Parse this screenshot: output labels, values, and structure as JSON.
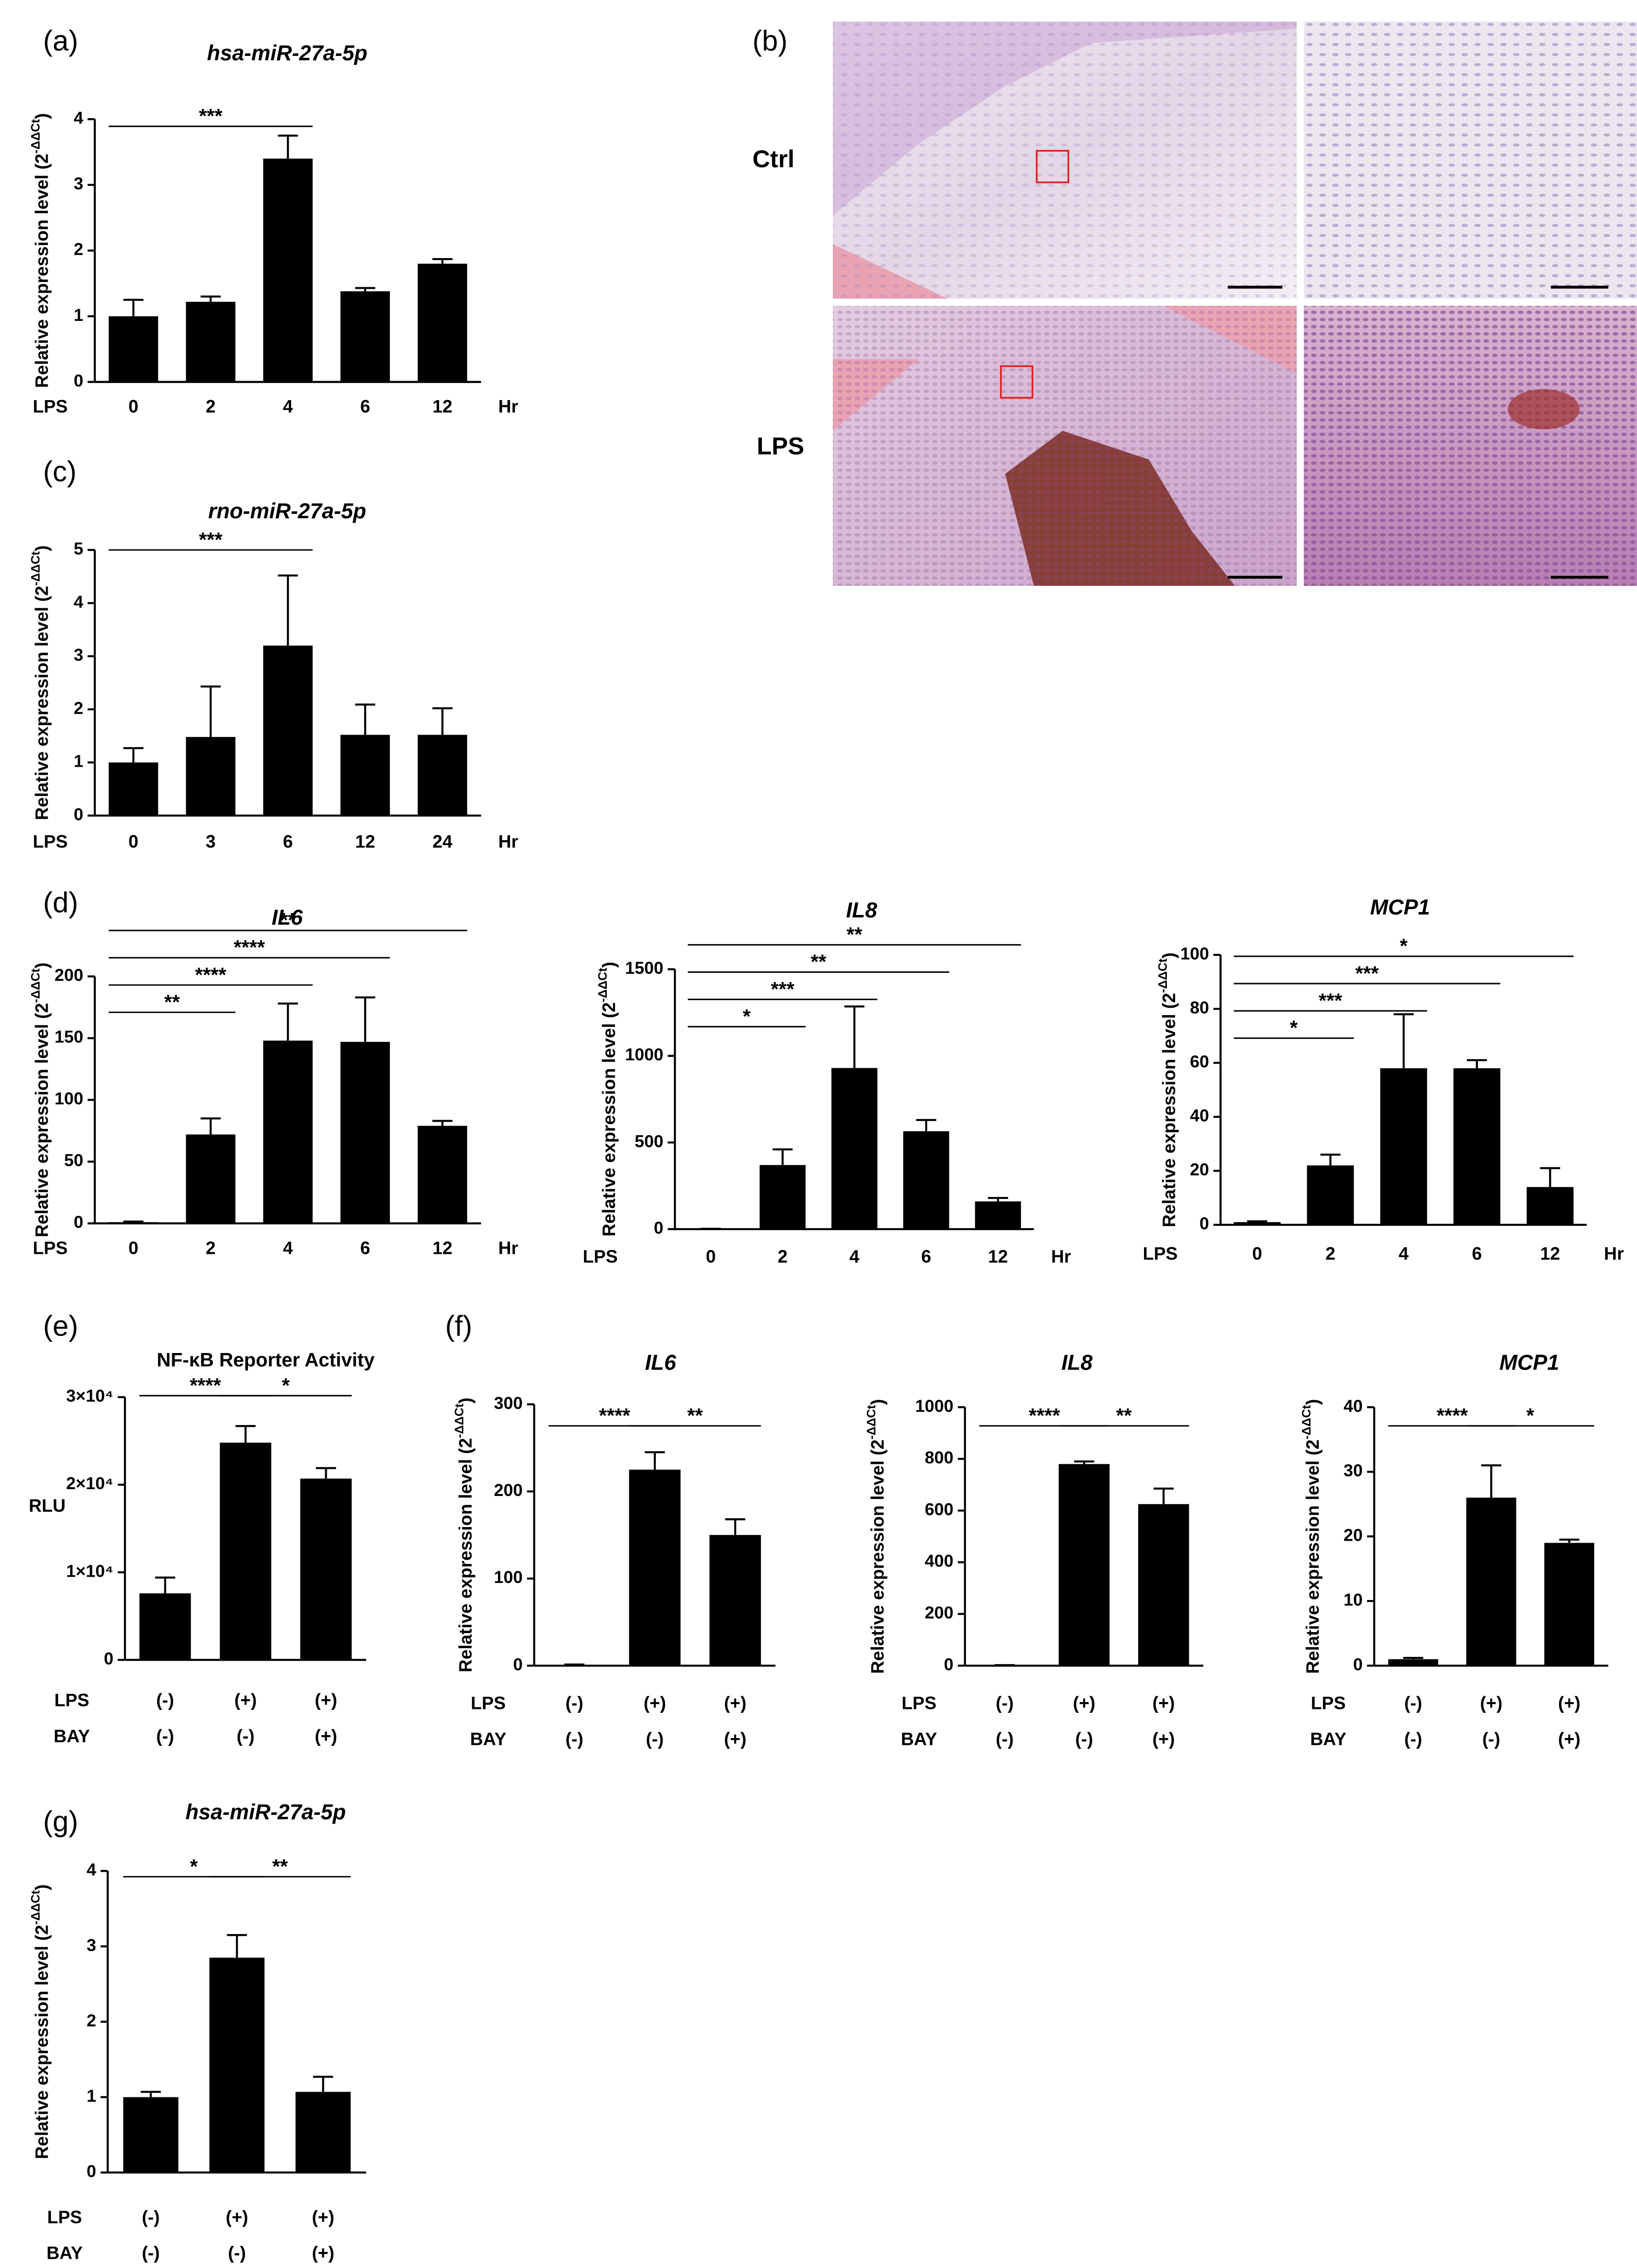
{
  "panel_b": {
    "panel": "(b)",
    "rows": [
      "Ctrl",
      "LPS"
    ]
  },
  "chart_data": [
    {
      "type": "bar",
      "panel": "(a)",
      "title": "hsa-miR-27a-5p",
      "ylabel": [
        "Relative expression level (2",
        "-ΔΔCt",
        ")"
      ],
      "row_label": "LPS",
      "categories": [
        "0",
        "2",
        "4",
        "6",
        "12"
      ],
      "unit_label": "Hr",
      "values": [
        1.0,
        1.22,
        3.4,
        1.38,
        1.8
      ],
      "errors": [
        0.25,
        0.08,
        0.35,
        0.05,
        0.07
      ],
      "ylim": [
        0,
        4
      ],
      "yticks": [
        0,
        1,
        2,
        3,
        4
      ],
      "color": "#000000",
      "significance": [
        {
          "bars": [
            0,
            2
          ],
          "label": "***"
        }
      ]
    },
    {
      "type": "bar",
      "panel": "(c)",
      "title": "rno-miR-27a-5p",
      "ylabel": [
        "Relative expression level (2",
        "-ΔΔCt",
        ")"
      ],
      "row_label": "LPS",
      "categories": [
        "0",
        "3",
        "6",
        "12",
        "24"
      ],
      "unit_label": "Hr",
      "values": [
        1.0,
        1.48,
        3.2,
        1.52,
        1.52
      ],
      "errors": [
        0.27,
        0.95,
        1.32,
        0.57,
        0.5
      ],
      "ylim": [
        0,
        5
      ],
      "yticks": [
        0,
        1,
        2,
        3,
        4,
        5
      ],
      "color": "#000000",
      "significance": [
        {
          "bars": [
            0,
            2
          ],
          "label": "***"
        }
      ]
    },
    {
      "type": "bar",
      "panel": "(d)",
      "title": "IL6",
      "ylabel": [
        "Relative expression level (2",
        "-ΔΔCt",
        ")"
      ],
      "row_label": "LPS",
      "categories": [
        "0",
        "2",
        "4",
        "6",
        "12"
      ],
      "unit_label": "Hr",
      "values": [
        1,
        72,
        148,
        147,
        79
      ],
      "errors": [
        0.5,
        13,
        30,
        36,
        4
      ],
      "ylim": [
        0,
        200
      ],
      "yticks": [
        0,
        50,
        100,
        150,
        200
      ],
      "color": "#000000",
      "significance": [
        {
          "bars": [
            0,
            1
          ],
          "label": "**"
        },
        {
          "bars": [
            0,
            2
          ],
          "label": "****"
        },
        {
          "bars": [
            0,
            3
          ],
          "label": "****"
        },
        {
          "bars": [
            0,
            4
          ],
          "label": "**"
        }
      ]
    },
    {
      "type": "bar",
      "title": "IL8",
      "ylabel": [
        "Relative expression level (2",
        "-ΔΔCt",
        ")"
      ],
      "row_label": "LPS",
      "categories": [
        "0",
        "2",
        "4",
        "6",
        "12"
      ],
      "unit_label": "Hr",
      "values": [
        1,
        370,
        930,
        565,
        160
      ],
      "errors": [
        1,
        90,
        355,
        65,
        20
      ],
      "ylim": [
        0,
        1500
      ],
      "yticks": [
        0,
        500,
        1000,
        1500
      ],
      "color": "#000000",
      "significance": [
        {
          "bars": [
            0,
            1
          ],
          "label": "*"
        },
        {
          "bars": [
            0,
            2
          ],
          "label": "***"
        },
        {
          "bars": [
            0,
            3
          ],
          "label": "**"
        },
        {
          "bars": [
            0,
            4
          ],
          "label": "**"
        }
      ]
    },
    {
      "type": "bar",
      "title": "MCP1",
      "ylabel": [
        "Relative expression level (2",
        "-ΔΔCt",
        ")"
      ],
      "row_label": "LPS",
      "categories": [
        "0",
        "2",
        "4",
        "6",
        "12"
      ],
      "unit_label": "Hr",
      "values": [
        1,
        22,
        58,
        58,
        14
      ],
      "errors": [
        0.3,
        4,
        20,
        3,
        7
      ],
      "ylim": [
        0,
        100
      ],
      "yticks": [
        0,
        20,
        40,
        60,
        80,
        100
      ],
      "color": "#000000",
      "significance": [
        {
          "bars": [
            0,
            1
          ],
          "label": "*"
        },
        {
          "bars": [
            0,
            2
          ],
          "label": "***"
        },
        {
          "bars": [
            0,
            3
          ],
          "label": "***"
        },
        {
          "bars": [
            0,
            4
          ],
          "label": "*"
        }
      ]
    },
    {
      "type": "bar",
      "panel": "(e)",
      "title": "NF-κB Reporter Activity",
      "ylabel": "RLU",
      "rows": [
        {
          "label": "LPS",
          "values": [
            "(-)",
            "(+)",
            "(+)"
          ]
        },
        {
          "label": "BAY",
          "values": [
            "(-)",
            "(-)",
            "(+)"
          ]
        }
      ],
      "values": [
        7600,
        24800,
        20700
      ],
      "errors": [
        1800,
        1900,
        1200
      ],
      "ylim": [
        0,
        30000
      ],
      "yticks": [
        0,
        {
          "value": 10000,
          "label": "1×10⁴"
        },
        {
          "value": 20000,
          "label": "2×10⁴"
        },
        {
          "value": 30000,
          "label": "3×10⁴"
        }
      ],
      "color": "#000000",
      "significance": [
        {
          "bars": [
            0,
            1
          ],
          "label": "****"
        },
        {
          "bars": [
            1,
            2
          ],
          "label": "*"
        }
      ]
    },
    {
      "type": "bar",
      "panel": "(f)",
      "title": "IL6",
      "ylabel": [
        "Relative expression level (2",
        "-ΔΔCt",
        ")"
      ],
      "rows": [
        {
          "label": "LPS",
          "values": [
            "(-)",
            "(+)",
            "(+)"
          ]
        },
        {
          "label": "BAY",
          "values": [
            "(-)",
            "(-)",
            "(+)"
          ]
        }
      ],
      "values": [
        1,
        225,
        150
      ],
      "errors": [
        0.3,
        20,
        18
      ],
      "ylim": [
        0,
        300
      ],
      "yticks": [
        0,
        100,
        200,
        300
      ],
      "color": "#000000",
      "significance": [
        {
          "bars": [
            0,
            1
          ],
          "label": "****"
        },
        {
          "bars": [
            1,
            2
          ],
          "label": "**"
        }
      ]
    },
    {
      "type": "bar",
      "title": "IL8",
      "ylabel": [
        "Relative expression level (2",
        "-ΔΔCt",
        ")"
      ],
      "rows": [
        {
          "label": "LPS",
          "values": [
            "(-)",
            "(+)",
            "(+)"
          ]
        },
        {
          "label": "BAY",
          "values": [
            "(-)",
            "(-)",
            "(+)"
          ]
        }
      ],
      "values": [
        1,
        780,
        625
      ],
      "errors": [
        1,
        10,
        60
      ],
      "ylim": [
        0,
        1000
      ],
      "yticks": [
        0,
        200,
        400,
        600,
        800,
        1000
      ],
      "color": "#000000",
      "significance": [
        {
          "bars": [
            0,
            1
          ],
          "label": "****"
        },
        {
          "bars": [
            1,
            2
          ],
          "label": "**"
        }
      ]
    },
    {
      "type": "bar",
      "title": "MCP1",
      "ylabel": [
        "Relative expression level (2",
        "-ΔΔCt",
        ")"
      ],
      "rows": [
        {
          "label": "LPS",
          "values": [
            "(-)",
            "(+)",
            "(+)"
          ]
        },
        {
          "label": "BAY",
          "values": [
            "(-)",
            "(-)",
            "(+)"
          ]
        }
      ],
      "values": [
        1,
        26,
        19
      ],
      "errors": [
        0.2,
        5,
        0.5
      ],
      "ylim": [
        0,
        40
      ],
      "yticks": [
        0,
        10,
        20,
        30,
        40
      ],
      "color": "#000000",
      "significance": [
        {
          "bars": [
            0,
            1
          ],
          "label": "****"
        },
        {
          "bars": [
            1,
            2
          ],
          "label": "*"
        }
      ]
    },
    {
      "type": "bar",
      "panel": "(g)",
      "title": "hsa-miR-27a-5p",
      "ylabel": [
        "Relative expression level (2",
        "-ΔΔCt",
        ")"
      ],
      "rows": [
        {
          "label": "LPS",
          "values": [
            "(-)",
            "(+)",
            "(+)"
          ]
        },
        {
          "label": "BAY",
          "values": [
            "(-)",
            "(-)",
            "(+)"
          ]
        }
      ],
      "values": [
        1.0,
        2.85,
        1.07
      ],
      "errors": [
        0.07,
        0.3,
        0.2
      ],
      "ylim": [
        0,
        4
      ],
      "yticks": [
        0,
        1,
        2,
        3,
        4
      ],
      "color": "#000000",
      "significance": [
        {
          "bars": [
            0,
            1
          ],
          "label": "*"
        },
        {
          "bars": [
            1,
            2
          ],
          "label": "**"
        }
      ]
    }
  ]
}
